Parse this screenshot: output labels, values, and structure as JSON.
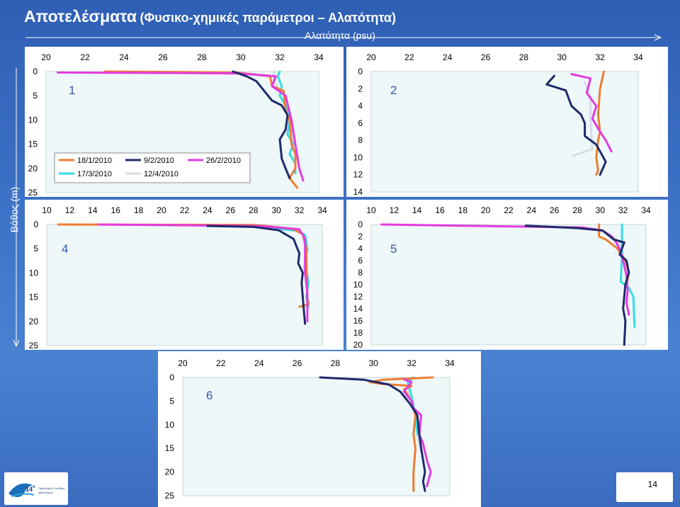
{
  "slide": {
    "title_main": "Αποτελέσματα",
    "title_sub": "(Φυσικο-χημικές παράμετροι – Αλατότητα)",
    "x_title": "Αλατότητα (psu)",
    "y_title": "Βάθος (m)",
    "page_number": "14",
    "logo_number": "14",
    "logo_superscript": "ο",
    "logo_line1": "Πανελλήνιο Συνέδριο",
    "logo_line2": "Ιχθυολόγων"
  },
  "colors": {
    "18/1/2010": "#ed7d31",
    "9/2/2010": "#1f2a6b",
    "26/2/2010": "#e23be0",
    "17/3/2010": "#33dde6",
    "12/4/2010": "#d6dce5"
  },
  "legend": [
    "18/1/2010",
    "9/2/2010",
    "26/2/2010",
    "17/3/2010",
    "12/4/2010"
  ],
  "chart_data": [
    {
      "type": "line",
      "label": "1",
      "xlim": [
        20,
        34
      ],
      "xticks": [
        20,
        22,
        24,
        26,
        28,
        30,
        32,
        34
      ],
      "ylim": [
        0,
        25
      ],
      "yticks": [
        0,
        5,
        10,
        15,
        20,
        25
      ],
      "series": [
        {
          "name": "18/1/2010",
          "points": [
            [
              23,
              0
            ],
            [
              29.8,
              0.2
            ],
            [
              31.5,
              1
            ],
            [
              31.6,
              3
            ],
            [
              32.2,
              4
            ],
            [
              32.3,
              8
            ],
            [
              32.5,
              10
            ],
            [
              32.6,
              15
            ],
            [
              32.8,
              17
            ],
            [
              32.8,
              20
            ],
            [
              32.5,
              22
            ],
            [
              32.9,
              24
            ]
          ]
        },
        {
          "name": "9/2/2010",
          "points": [
            [
              29.6,
              0
            ],
            [
              30.3,
              1
            ],
            [
              30.8,
              2
            ],
            [
              31.2,
              4
            ],
            [
              31.6,
              6
            ],
            [
              32.1,
              7
            ],
            [
              32.4,
              9
            ],
            [
              32.3,
              12
            ],
            [
              32.0,
              14
            ],
            [
              32.1,
              18
            ],
            [
              32.3,
              20
            ],
            [
              32.5,
              22
            ]
          ]
        },
        {
          "name": "26/2/2010",
          "points": [
            [
              20.6,
              0.2
            ],
            [
              27,
              0.3
            ],
            [
              30,
              0.4
            ],
            [
              31.8,
              1
            ],
            [
              31.6,
              3
            ],
            [
              32.3,
              5
            ],
            [
              32.6,
              10
            ],
            [
              32.8,
              15
            ],
            [
              33.0,
              20
            ],
            [
              33.2,
              22.5
            ]
          ]
        },
        {
          "name": "17/3/2010",
          "points": [
            [
              32.0,
              0
            ],
            [
              31.9,
              1
            ],
            [
              32.1,
              3
            ],
            [
              32.0,
              5
            ],
            [
              32.3,
              7
            ],
            [
              32.5,
              10
            ],
            [
              32.4,
              13
            ],
            [
              32.7,
              15
            ],
            [
              32.5,
              17
            ],
            [
              32.8,
              19
            ],
            [
              32.8,
              21
            ]
          ]
        },
        {
          "name": "12/4/2010",
          "points": [
            [
              31.7,
              0
            ],
            [
              31.7,
              2
            ],
            [
              32.2,
              5
            ],
            [
              32.4,
              8
            ],
            [
              32.6,
              12
            ],
            [
              32.7,
              16
            ],
            [
              32.9,
              18
            ]
          ]
        }
      ]
    },
    {
      "type": "line",
      "label": "2",
      "xlim": [
        20,
        34
      ],
      "xticks": [
        20,
        22,
        24,
        26,
        28,
        30,
        32,
        34
      ],
      "ylim": [
        0,
        14
      ],
      "yticks": [
        0,
        2,
        4,
        6,
        8,
        10,
        12,
        14
      ],
      "series": [
        {
          "name": "18/1/2010",
          "points": [
            [
              32.2,
              0
            ],
            [
              32.0,
              2
            ],
            [
              31.9,
              5
            ],
            [
              32.0,
              7
            ],
            [
              31.9,
              8
            ],
            [
              31.8,
              10
            ],
            [
              31.9,
              11.5
            ],
            [
              31.8,
              12
            ]
          ]
        },
        {
          "name": "9/2/2010",
          "points": [
            [
              29.6,
              0.5
            ],
            [
              29.2,
              1.5
            ],
            [
              30.2,
              2.2
            ],
            [
              30.5,
              4
            ],
            [
              31.0,
              5
            ],
            [
              31.2,
              6
            ],
            [
              31.2,
              7.5
            ],
            [
              31.8,
              8.5
            ],
            [
              32.3,
              10.5
            ],
            [
              32.0,
              12
            ]
          ]
        },
        {
          "name": "26/2/2010",
          "points": [
            [
              30.5,
              0.3
            ],
            [
              31.5,
              0.8
            ],
            [
              31.3,
              2.5
            ],
            [
              31.8,
              4
            ],
            [
              31.6,
              5.5
            ],
            [
              32.0,
              7
            ],
            [
              32.3,
              8
            ],
            [
              32.6,
              9.3
            ]
          ]
        },
        {
          "name": "17/3/2010",
          "points": []
        },
        {
          "name": "12/4/2010",
          "points": [
            [
              31.2,
              1.2
            ],
            [
              31.5,
              3
            ],
            [
              31.5,
              6
            ],
            [
              31.6,
              9
            ],
            [
              30.6,
              9.8
            ]
          ]
        }
      ]
    },
    {
      "type": "line",
      "label": "4",
      "xlim": [
        10,
        34
      ],
      "xticks": [
        10,
        12,
        14,
        16,
        18,
        20,
        22,
        24,
        26,
        28,
        30,
        32,
        34
      ],
      "ylim": [
        0,
        25
      ],
      "yticks": [
        0,
        5,
        10,
        15,
        20,
        25
      ],
      "series": [
        {
          "name": "18/1/2010",
          "points": [
            [
              11,
              0
            ],
            [
              28,
              0.1
            ],
            [
              29.5,
              0.4
            ],
            [
              31.5,
              1
            ],
            [
              32.3,
              2
            ],
            [
              32.6,
              5
            ],
            [
              32.7,
              15
            ],
            [
              32.8,
              16.5
            ],
            [
              32.0,
              17
            ]
          ]
        },
        {
          "name": "9/2/2010",
          "points": [
            [
              24,
              0.3
            ],
            [
              28,
              0.5
            ],
            [
              30.2,
              1.2
            ],
            [
              31.5,
              3
            ],
            [
              32.0,
              6
            ],
            [
              31.9,
              8
            ],
            [
              32.3,
              10
            ],
            [
              32.2,
              12
            ],
            [
              32.4,
              18
            ],
            [
              32.5,
              20.5
            ]
          ]
        },
        {
          "name": "26/2/2010",
          "points": [
            [
              14.5,
              0
            ],
            [
              28.5,
              0.3
            ],
            [
              32.0,
              1
            ],
            [
              32.5,
              3
            ],
            [
              32.5,
              10
            ],
            [
              32.7,
              14
            ],
            [
              32.7,
              20
            ]
          ]
        },
        {
          "name": "17/3/2010",
          "points": [
            [
              28.0,
              0.5
            ],
            [
              30.5,
              1
            ],
            [
              31.8,
              1.3
            ],
            [
              32.5,
              2.2
            ],
            [
              32.7,
              5
            ],
            [
              32.5,
              8
            ],
            [
              32.8,
              12
            ],
            [
              32.6,
              15
            ],
            [
              32.8,
              17
            ]
          ]
        },
        {
          "name": "12/4/2010",
          "points": [
            [
              30.0,
              0.4
            ],
            [
              31.8,
              1
            ],
            [
              32.3,
              2
            ],
            [
              32.6,
              6
            ],
            [
              32.4,
              9
            ],
            [
              32.7,
              13
            ]
          ]
        }
      ]
    },
    {
      "type": "line",
      "label": "5",
      "xlim": [
        10,
        34
      ],
      "xticks": [
        10,
        12,
        14,
        16,
        18,
        20,
        22,
        24,
        26,
        28,
        30,
        32,
        34
      ],
      "ylim": [
        0,
        20
      ],
      "yticks": [
        0,
        2,
        4,
        6,
        8,
        10,
        12,
        14,
        16,
        18,
        20
      ],
      "series": [
        {
          "name": "18/1/2010",
          "points": [
            [
              29.9,
              0
            ],
            [
              29.9,
              2
            ],
            [
              30.5,
              2.5
            ],
            [
              31.5,
              4
            ],
            [
              32.2,
              6
            ],
            [
              32.5,
              8
            ],
            [
              32.3,
              10
            ]
          ]
        },
        {
          "name": "9/2/2010",
          "points": [
            [
              23.5,
              0.2
            ],
            [
              28,
              0.6
            ],
            [
              30.2,
              1
            ],
            [
              31.2,
              2.5
            ],
            [
              32.1,
              3
            ],
            [
              31.7,
              5
            ],
            [
              32.3,
              6
            ],
            [
              32.5,
              8
            ],
            [
              32.2,
              10
            ],
            [
              32.0,
              14
            ],
            [
              32.2,
              16
            ],
            [
              32.1,
              20
            ]
          ]
        },
        {
          "name": "26/2/2010",
          "points": [
            [
              10.9,
              0
            ],
            [
              28.5,
              0.5
            ],
            [
              30.2,
              1
            ],
            [
              31.0,
              2
            ],
            [
              31.4,
              3
            ],
            [
              31.8,
              4.5
            ],
            [
              32.0,
              6
            ],
            [
              32.3,
              8.5
            ],
            [
              32.4,
              11
            ],
            [
              32.3,
              13
            ],
            [
              32.5,
              15
            ]
          ]
        },
        {
          "name": "17/3/2010",
          "points": [
            [
              31.9,
              0
            ],
            [
              31.9,
              5
            ],
            [
              31.8,
              9.5
            ],
            [
              32.5,
              10.5
            ],
            [
              32.9,
              12
            ],
            [
              33.0,
              17
            ]
          ]
        },
        {
          "name": "12/4/2010",
          "points": [
            [
              30.2,
              1
            ],
            [
              31.5,
              2.5
            ],
            [
              32.0,
              5
            ],
            [
              32.3,
              8
            ]
          ]
        }
      ]
    },
    {
      "type": "line",
      "label": "6",
      "xlim": [
        20,
        34
      ],
      "xticks": [
        20,
        22,
        24,
        26,
        28,
        30,
        32,
        34
      ],
      "ylim": [
        0,
        25
      ],
      "yticks": [
        0,
        5,
        10,
        15,
        20,
        25
      ],
      "series": [
        {
          "name": "18/1/2010",
          "points": [
            [
              33.1,
              0
            ],
            [
              30.5,
              0.5
            ],
            [
              29.8,
              1
            ],
            [
              30.5,
              1.4
            ],
            [
              32.0,
              1.8
            ],
            [
              31.6,
              2.5
            ],
            [
              32.0,
              5
            ],
            [
              32.2,
              8
            ],
            [
              32.1,
              12
            ],
            [
              32.2,
              15
            ],
            [
              32.1,
              20
            ],
            [
              32.1,
              24
            ]
          ]
        },
        {
          "name": "9/2/2010",
          "points": [
            [
              27.2,
              0
            ],
            [
              29.5,
              0.5
            ],
            [
              30.8,
              1.5
            ],
            [
              31.4,
              3
            ],
            [
              31.9,
              5.5
            ],
            [
              32.3,
              8
            ],
            [
              32.4,
              12
            ],
            [
              32.5,
              15
            ],
            [
              32.7,
              20
            ],
            [
              32.6,
              22
            ],
            [
              32.7,
              24
            ]
          ]
        },
        {
          "name": "26/2/2010",
          "points": [
            [
              31.6,
              0.4
            ],
            [
              32.0,
              1
            ],
            [
              31.6,
              3
            ],
            [
              32.0,
              5
            ],
            [
              32.1,
              6.5
            ],
            [
              32.5,
              8
            ],
            [
              32.4,
              12
            ],
            [
              32.6,
              14
            ],
            [
              32.8,
              17.5
            ],
            [
              33.0,
              20
            ],
            [
              32.8,
              23
            ]
          ]
        },
        {
          "name": "17/3/2010",
          "points": [
            [
              32.1,
              0
            ],
            [
              31.8,
              1
            ],
            [
              32.0,
              4
            ],
            [
              32.2,
              8
            ],
            [
              32.3,
              12
            ]
          ]
        },
        {
          "name": "12/4/2010",
          "points": [
            [
              31.8,
              1
            ],
            [
              31.9,
              4
            ],
            [
              32.2,
              8
            ],
            [
              32.3,
              12
            ],
            [
              32.5,
              16
            ]
          ]
        }
      ]
    }
  ]
}
